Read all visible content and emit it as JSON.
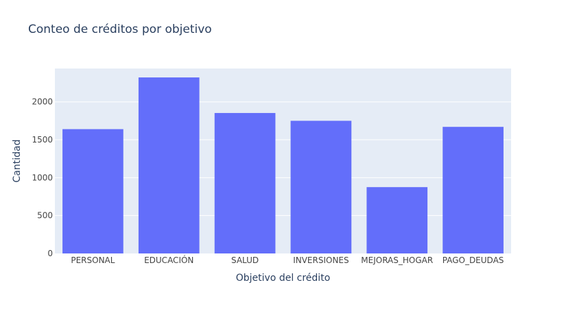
{
  "chart_data": {
    "type": "bar",
    "title": "Conteo de créditos por objetivo",
    "xlabel": "Objetivo del crédito",
    "ylabel": "Cantidad",
    "categories": [
      "PERSONAL",
      "EDUCACIÓN",
      "SALUD",
      "INVERSIONES",
      "MEJORAS_HOGAR",
      "PAGO_DEUDAS"
    ],
    "values": [
      1640,
      2322,
      1853,
      1750,
      875,
      1670
    ],
    "ylim": [
      0,
      2440
    ],
    "yticks": [
      0,
      500,
      1000,
      1500,
      2000
    ],
    "grid": true,
    "legend": "none",
    "colors": {
      "bar": "#636efa",
      "plot_bg": "#e5ecf6",
      "grid": "#ffffff",
      "text": "#2a3f5f",
      "tick_text": "#444444"
    }
  }
}
